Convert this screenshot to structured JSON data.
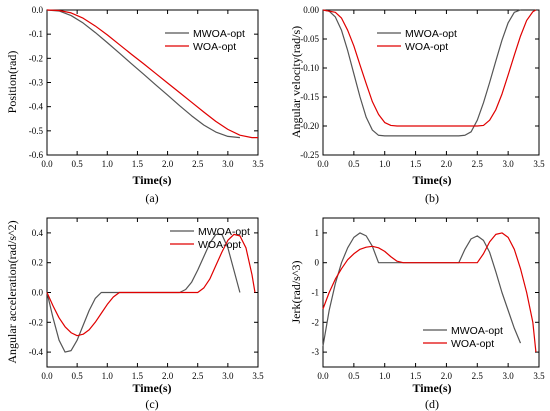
{
  "chart_data": [
    {
      "type": "line",
      "caption": "(a)",
      "xlabel": "Time(s)",
      "ylabel": "Position(rad)",
      "xlim": [
        0.0,
        3.5
      ],
      "ylim": [
        -0.6,
        0.0
      ],
      "xticks": [
        "0.0",
        "0.5",
        "1.0",
        "1.5",
        "2.0",
        "2.5",
        "3.0",
        "3.5"
      ],
      "yticks": [
        "0.0",
        "-0.1",
        "-0.2",
        "-0.3",
        "-0.4",
        "-0.5",
        "-0.6"
      ],
      "xtick_values": [
        0.0,
        0.5,
        1.0,
        1.5,
        2.0,
        2.5,
        3.0,
        3.5
      ],
      "ytick_values": [
        0.0,
        -0.1,
        -0.2,
        -0.3,
        -0.4,
        -0.5,
        -0.6
      ],
      "legend_position": "top-right",
      "series": [
        {
          "name": "MWOA-opt",
          "color": "#555555",
          "x": [
            0.0,
            0.2,
            0.4,
            0.6,
            0.8,
            1.0,
            1.2,
            1.4,
            1.6,
            1.8,
            2.0,
            2.2,
            2.4,
            2.6,
            2.8,
            3.0,
            3.2
          ],
          "y": [
            0.0,
            -0.004,
            -0.023,
            -0.054,
            -0.093,
            -0.135,
            -0.178,
            -0.222,
            -0.265,
            -0.309,
            -0.352,
            -0.396,
            -0.438,
            -0.476,
            -0.505,
            -0.523,
            -0.528
          ]
        },
        {
          "name": "WOA-opt",
          "color": "#e00000",
          "x": [
            0.0,
            0.2,
            0.4,
            0.6,
            0.8,
            1.0,
            1.2,
            1.4,
            1.6,
            1.8,
            2.0,
            2.2,
            2.4,
            2.6,
            2.8,
            3.0,
            3.2,
            3.4,
            3.5
          ],
          "y": [
            0.0,
            -0.002,
            -0.012,
            -0.034,
            -0.066,
            -0.103,
            -0.143,
            -0.183,
            -0.222,
            -0.262,
            -0.302,
            -0.342,
            -0.382,
            -0.422,
            -0.461,
            -0.494,
            -0.518,
            -0.528,
            -0.528
          ]
        }
      ]
    },
    {
      "type": "line",
      "caption": "(b)",
      "xlabel": "Time(s)",
      "ylabel": "Angular velocity(rad/s)",
      "xlim": [
        0.0,
        3.5
      ],
      "ylim": [
        -0.25,
        0.0
      ],
      "xticks": [
        "0.0",
        "0.5",
        "1.0",
        "1.5",
        "2.0",
        "2.5",
        "3.0",
        "3.5"
      ],
      "yticks": [
        "0.00",
        "-0.05",
        "-0.10",
        "-0.15",
        "-0.20",
        "-0.25"
      ],
      "xtick_values": [
        0.0,
        0.5,
        1.0,
        1.5,
        2.0,
        2.5,
        3.0,
        3.5
      ],
      "ytick_values": [
        0.0,
        -0.05,
        -0.1,
        -0.15,
        -0.2,
        -0.25
      ],
      "legend_position": "top-right",
      "series": [
        {
          "name": "MWOA-opt",
          "color": "#555555",
          "x": [
            0.0,
            0.1,
            0.2,
            0.3,
            0.4,
            0.5,
            0.6,
            0.7,
            0.8,
            0.9,
            1.0,
            2.2,
            2.3,
            2.4,
            2.5,
            2.6,
            2.7,
            2.8,
            2.9,
            3.0,
            3.1,
            3.2
          ],
          "y": [
            0.0,
            -0.002,
            -0.012,
            -0.035,
            -0.07,
            -0.11,
            -0.15,
            -0.185,
            -0.207,
            -0.216,
            -0.217,
            -0.217,
            -0.216,
            -0.21,
            -0.19,
            -0.16,
            -0.125,
            -0.088,
            -0.052,
            -0.022,
            -0.004,
            0.0
          ]
        },
        {
          "name": "WOA-opt",
          "color": "#e00000",
          "x": [
            0.0,
            0.2,
            0.3,
            0.4,
            0.5,
            0.6,
            0.7,
            0.8,
            0.9,
            1.0,
            1.1,
            1.2,
            2.5,
            2.6,
            2.7,
            2.8,
            2.9,
            3.0,
            3.1,
            3.2,
            3.3,
            3.4,
            3.45
          ],
          "y": [
            0.0,
            -0.004,
            -0.014,
            -0.035,
            -0.062,
            -0.095,
            -0.127,
            -0.158,
            -0.18,
            -0.194,
            -0.199,
            -0.2,
            -0.2,
            -0.199,
            -0.19,
            -0.172,
            -0.145,
            -0.112,
            -0.078,
            -0.045,
            -0.018,
            -0.003,
            0.0
          ]
        }
      ]
    },
    {
      "type": "line",
      "caption": "(c)",
      "xlabel": "Time(s)",
      "ylabel": "Angular acceleration(rad/s^2)",
      "xlim": [
        0.0,
        3.5
      ],
      "ylim": [
        -0.5,
        0.5
      ],
      "xticks": [
        "0.0",
        "0.5",
        "1.0",
        "1.5",
        "2.0",
        "2.5",
        "3.0",
        "3.5"
      ],
      "yticks": [
        "0.4",
        "0.2",
        "0.0",
        "-0.2",
        "-0.4"
      ],
      "xtick_values": [
        0.0,
        0.5,
        1.0,
        1.5,
        2.0,
        2.5,
        3.0,
        3.5
      ],
      "ytick_values": [
        0.4,
        0.2,
        0.0,
        -0.2,
        -0.4
      ],
      "legend_position": "top-right",
      "series": [
        {
          "name": "MWOA-opt",
          "color": "#555555",
          "x": [
            0.0,
            0.1,
            0.2,
            0.3,
            0.4,
            0.5,
            0.6,
            0.7,
            0.8,
            0.9,
            1.0,
            2.2,
            2.3,
            2.4,
            2.5,
            2.6,
            2.7,
            2.8,
            2.9,
            3.0,
            3.1,
            3.2
          ],
          "y": [
            0.0,
            -0.17,
            -0.32,
            -0.4,
            -0.39,
            -0.32,
            -0.22,
            -0.12,
            -0.04,
            0.0,
            0.0,
            0.0,
            0.02,
            0.07,
            0.15,
            0.24,
            0.33,
            0.39,
            0.39,
            0.3,
            0.15,
            0.0
          ]
        },
        {
          "name": "WOA-opt",
          "color": "#e00000",
          "x": [
            0.0,
            0.1,
            0.2,
            0.3,
            0.4,
            0.5,
            0.6,
            0.7,
            0.8,
            0.9,
            1.0,
            1.1,
            1.2,
            2.5,
            2.6,
            2.7,
            2.8,
            2.9,
            3.0,
            3.1,
            3.2,
            3.3,
            3.4,
            3.45
          ],
          "y": [
            0.0,
            -0.09,
            -0.17,
            -0.23,
            -0.27,
            -0.29,
            -0.28,
            -0.25,
            -0.2,
            -0.14,
            -0.08,
            -0.03,
            0.0,
            0.0,
            0.03,
            0.09,
            0.18,
            0.27,
            0.35,
            0.39,
            0.38,
            0.3,
            0.12,
            0.0
          ]
        }
      ]
    },
    {
      "type": "line",
      "caption": "(d)",
      "xlabel": "Time(s)",
      "ylabel": "Jerk(rad/s^3)",
      "xlim": [
        0.0,
        3.5
      ],
      "ylim": [
        -3.5,
        1.5
      ],
      "xticks": [
        "0.0",
        "0.5",
        "1.0",
        "1.5",
        "2.0",
        "2.5",
        "3.0",
        "3.5"
      ],
      "yticks": [
        "1",
        "0",
        "-1",
        "-2",
        "-3"
      ],
      "xtick_values": [
        0.0,
        0.5,
        1.0,
        1.5,
        2.0,
        2.5,
        3.0,
        3.5
      ],
      "ytick_values": [
        1,
        0,
        -1,
        -2,
        -3
      ],
      "legend_position": "bottom-right",
      "series": [
        {
          "name": "MWOA-opt",
          "color": "#555555",
          "x": [
            0.0,
            0.1,
            0.2,
            0.3,
            0.4,
            0.5,
            0.6,
            0.7,
            0.8,
            0.9,
            1.0,
            2.2,
            2.3,
            2.4,
            2.5,
            2.6,
            2.7,
            2.8,
            2.9,
            3.0,
            3.1,
            3.2
          ],
          "y": [
            -2.8,
            -1.6,
            -0.7,
            0.0,
            0.5,
            0.85,
            1.0,
            0.9,
            0.55,
            0.0,
            0.0,
            0.0,
            0.45,
            0.8,
            0.9,
            0.75,
            0.35,
            -0.3,
            -1.0,
            -1.6,
            -2.2,
            -2.7
          ]
        },
        {
          "name": "WOA-opt",
          "color": "#e00000",
          "x": [
            0.0,
            0.1,
            0.2,
            0.3,
            0.4,
            0.5,
            0.6,
            0.7,
            0.8,
            0.9,
            1.0,
            1.1,
            1.2,
            1.3,
            2.5,
            2.6,
            2.7,
            2.8,
            2.9,
            3.0,
            3.1,
            3.2,
            3.3,
            3.4,
            3.45
          ],
          "y": [
            -1.55,
            -1.0,
            -0.55,
            -0.2,
            0.1,
            0.3,
            0.45,
            0.52,
            0.55,
            0.5,
            0.38,
            0.2,
            0.05,
            0.0,
            0.0,
            0.3,
            0.7,
            0.95,
            1.0,
            0.85,
            0.45,
            -0.2,
            -1.0,
            -2.0,
            -3.0
          ]
        }
      ]
    }
  ]
}
